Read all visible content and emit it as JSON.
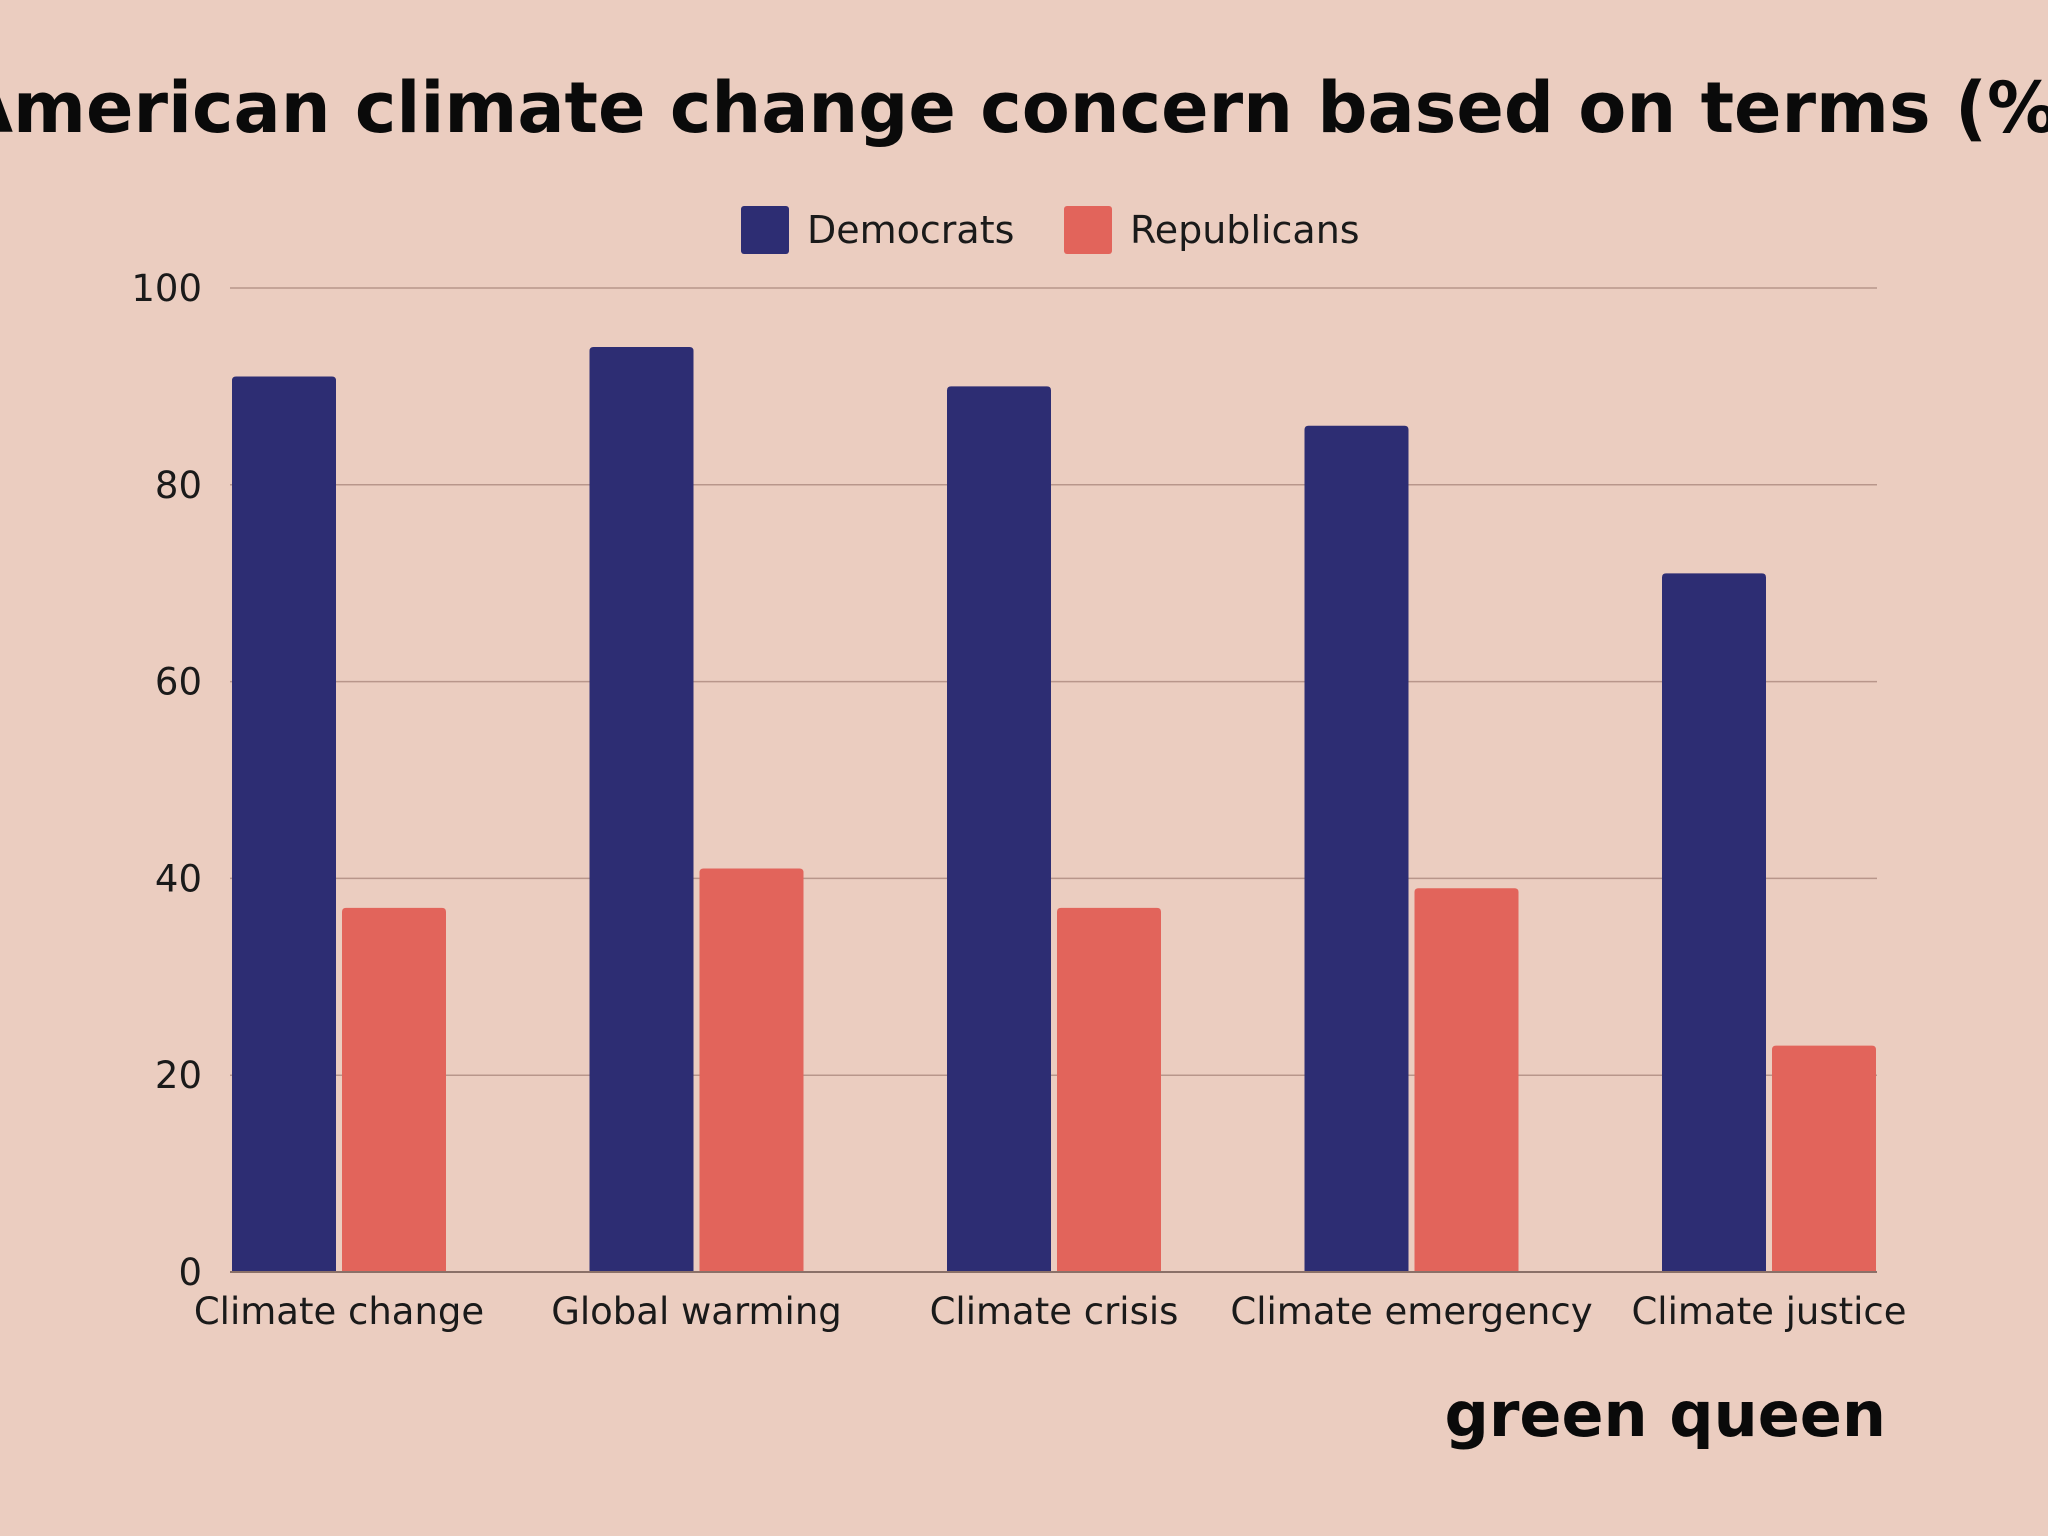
{
  "chart_data": {
    "type": "bar",
    "title": "American climate change concern based on terms (%)",
    "categories": [
      "Climate change",
      "Global warming",
      "Climate crisis",
      "Climate emergency",
      "Climate justice"
    ],
    "series": [
      {
        "name": "Democrats",
        "color": "#2d2d73",
        "values": [
          91,
          94,
          90,
          86,
          71
        ]
      },
      {
        "name": "Republicans",
        "color": "#e2645b",
        "values": [
          37,
          41,
          37,
          39,
          23
        ]
      }
    ],
    "xlabel": "",
    "ylabel": "",
    "ylim": [
      0,
      100
    ],
    "yticks": [
      0,
      20,
      40,
      60,
      80,
      100
    ],
    "grid": true,
    "legend_position": "top-center"
  },
  "branding": {
    "logo_text": "green queen"
  },
  "colors": {
    "background": "#ebcdc0",
    "gridline": "#b8968b"
  }
}
